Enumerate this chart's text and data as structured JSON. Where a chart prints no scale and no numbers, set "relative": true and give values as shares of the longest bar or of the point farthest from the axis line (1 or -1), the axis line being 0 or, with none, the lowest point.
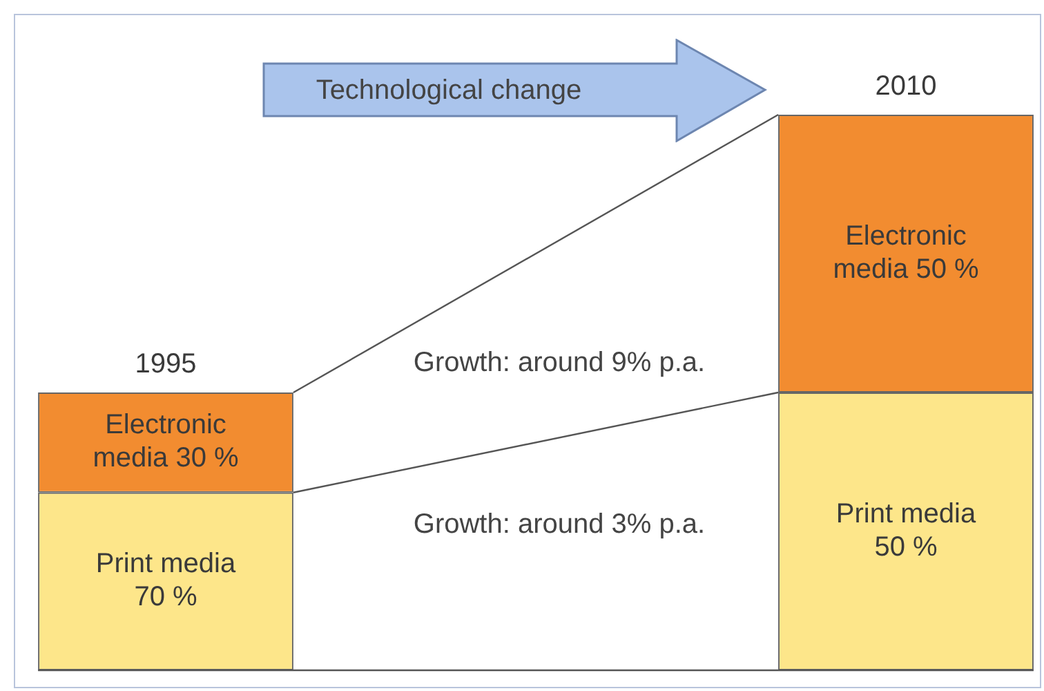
{
  "chart_data": {
    "type": "bar",
    "stacked": true,
    "relative": true,
    "categories": [
      "1995",
      "2010"
    ],
    "series": [
      {
        "color": "#fde68a",
        "values": [
          0.32,
          0.5
        ]
      },
      {
        "color": "#f28c30",
        "values": [
          0.18,
          0.5
        ]
      }
    ],
    "annotations": [
      "Technological change",
      "Growth: around 9% p.a.",
      "Growth: around 3% p.a.",
      "Electronic media 30 %",
      "Print media 70 %",
      "Electronic media 50 %",
      "Print media 50 %"
    ],
    "legend": false,
    "tick_labels": "x"
  }
}
